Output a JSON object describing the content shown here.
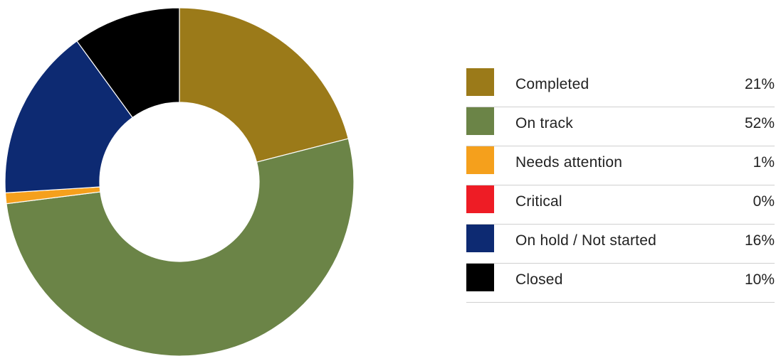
{
  "chart_data": {
    "type": "pie",
    "title": "",
    "categories": [
      "Completed",
      "On track",
      "Needs attention",
      "Critical",
      "On hold / Not started",
      "Closed"
    ],
    "values": [
      21,
      52,
      1,
      0,
      16,
      10
    ],
    "value_labels": [
      "21%",
      "52%",
      "1%",
      "0%",
      "16%",
      "10%"
    ],
    "colors": [
      "#9b7a19",
      "#6b8447",
      "#f5a01c",
      "#ee1c25",
      "#0d2a72",
      "#000000"
    ],
    "legend_placement": "right",
    "donut": true
  }
}
